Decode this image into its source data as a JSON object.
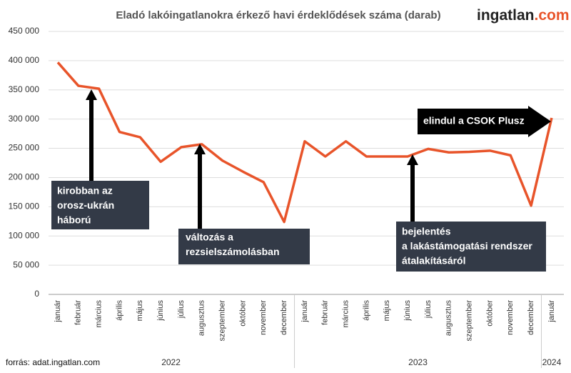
{
  "chart_data": {
    "type": "line",
    "title": "Eladó lakóingatlanokra érkező havi érdeklődések száma (darab)",
    "logo": {
      "main": "ingatlan",
      "suffix": ".com"
    },
    "source": "forrás: adat.ingatlan.com",
    "categories": [
      "január",
      "február",
      "március",
      "április",
      "május",
      "június",
      "július",
      "augusztus",
      "szeptember",
      "október",
      "november",
      "december",
      "január",
      "február",
      "március",
      "április",
      "május",
      "június",
      "július",
      "augusztus",
      "szeptember",
      "október",
      "november",
      "december",
      "január"
    ],
    "x_groups": [
      {
        "label": "2022",
        "count": 12
      },
      {
        "label": "2023",
        "count": 12
      },
      {
        "label": "2024",
        "count": 1
      }
    ],
    "series": [
      {
        "name": "érdeklődések",
        "color": "#e8542a",
        "values": [
          397000,
          357000,
          352000,
          278000,
          269000,
          227000,
          252000,
          257000,
          229000,
          210000,
          192000,
          124000,
          262000,
          236000,
          262000,
          236000,
          236000,
          236000,
          249000,
          243000,
          244000,
          246000,
          238000,
          152000,
          302000
        ]
      }
    ],
    "ylim": [
      0,
      450000
    ],
    "yticks": [
      {
        "value": 0,
        "label": "0"
      },
      {
        "value": 50000,
        "label": "50 000"
      },
      {
        "value": 100000,
        "label": "100 000"
      },
      {
        "value": 150000,
        "label": "150 000"
      },
      {
        "value": 200000,
        "label": "200 000"
      },
      {
        "value": 250000,
        "label": "250 000"
      },
      {
        "value": 300000,
        "label": "300 000"
      },
      {
        "value": 350000,
        "label": "350 000"
      },
      {
        "value": 400000,
        "label": "400 000"
      },
      {
        "value": 450000,
        "label": "450 000"
      }
    ],
    "grid": true,
    "annotations": [
      {
        "lines": [
          "kirobban az",
          "orosz-ukrán",
          "háború"
        ]
      },
      {
        "lines": [
          "változás a",
          "rezsielszámolásban"
        ]
      },
      {
        "lines": [
          "bejelentés",
          "a lakástámogatási rendszer",
          "átalakításáról"
        ]
      },
      {
        "lines": [
          "elindul a CSOK Plusz"
        ]
      }
    ]
  }
}
